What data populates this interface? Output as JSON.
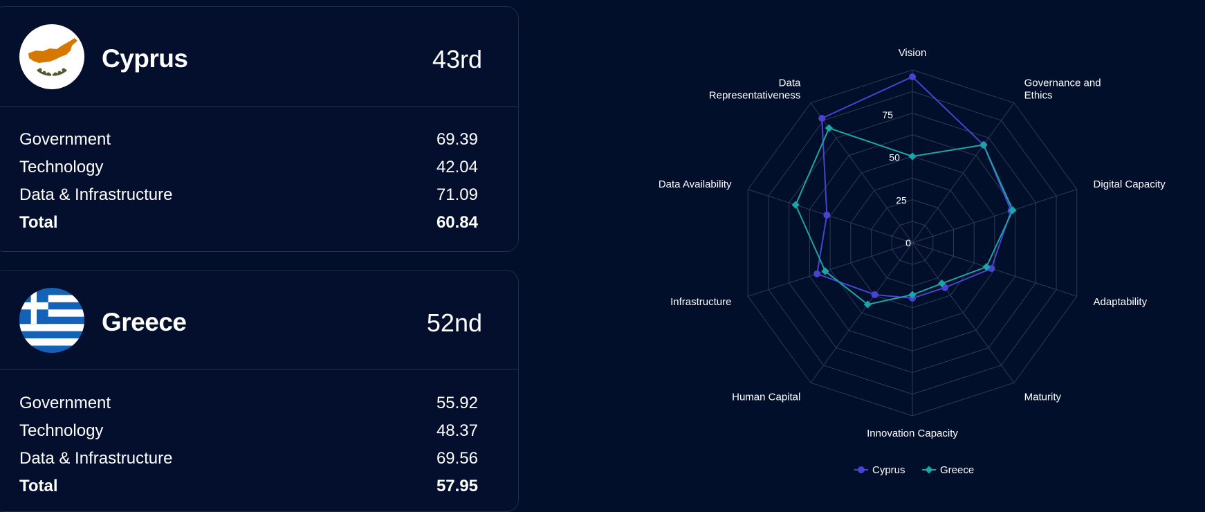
{
  "countries": [
    {
      "name": "Cyprus",
      "rank": "43rd",
      "flag_icon": "cyprus-flag",
      "metrics": [
        {
          "label": "Government",
          "value": "69.39"
        },
        {
          "label": "Technology",
          "value": "42.04"
        },
        {
          "label": "Data & Infrastructure",
          "value": "71.09"
        },
        {
          "label": "Total",
          "value": "60.84"
        }
      ]
    },
    {
      "name": "Greece",
      "rank": "52nd",
      "flag_icon": "greece-flag",
      "metrics": [
        {
          "label": "Government",
          "value": "55.92"
        },
        {
          "label": "Technology",
          "value": "48.37"
        },
        {
          "label": "Data & Infrastructure",
          "value": "69.56"
        },
        {
          "label": "Total",
          "value": "57.95"
        }
      ]
    }
  ],
  "chart_data": {
    "type": "radar",
    "categories": [
      "Vision",
      "Governance and Ethics",
      "Digital Capacity",
      "Adaptability",
      "Maturity",
      "Innovation Capacity",
      "Human Capital",
      "Infrastructure",
      "Data Availability",
      "Data Representativeness"
    ],
    "rlim": [
      0,
      100
    ],
    "ticks": [
      0,
      25,
      50,
      75
    ],
    "grid": true,
    "legend_position": "bottom",
    "series": [
      {
        "name": "Cyprus",
        "color": "#4a42d0",
        "marker": "circle",
        "values": [
          96,
          70,
          60,
          48,
          32,
          32,
          37,
          58,
          52,
          89
        ]
      },
      {
        "name": "Greece",
        "color": "#1aa6a6",
        "marker": "diamond",
        "values": [
          50,
          70,
          61,
          45,
          29,
          30,
          44,
          53,
          71,
          82
        ]
      }
    ]
  },
  "colors": {
    "background": "#020f2b",
    "card_border": "#1f2c4a",
    "grid": "#2f3a55",
    "text": "#ffffff"
  }
}
